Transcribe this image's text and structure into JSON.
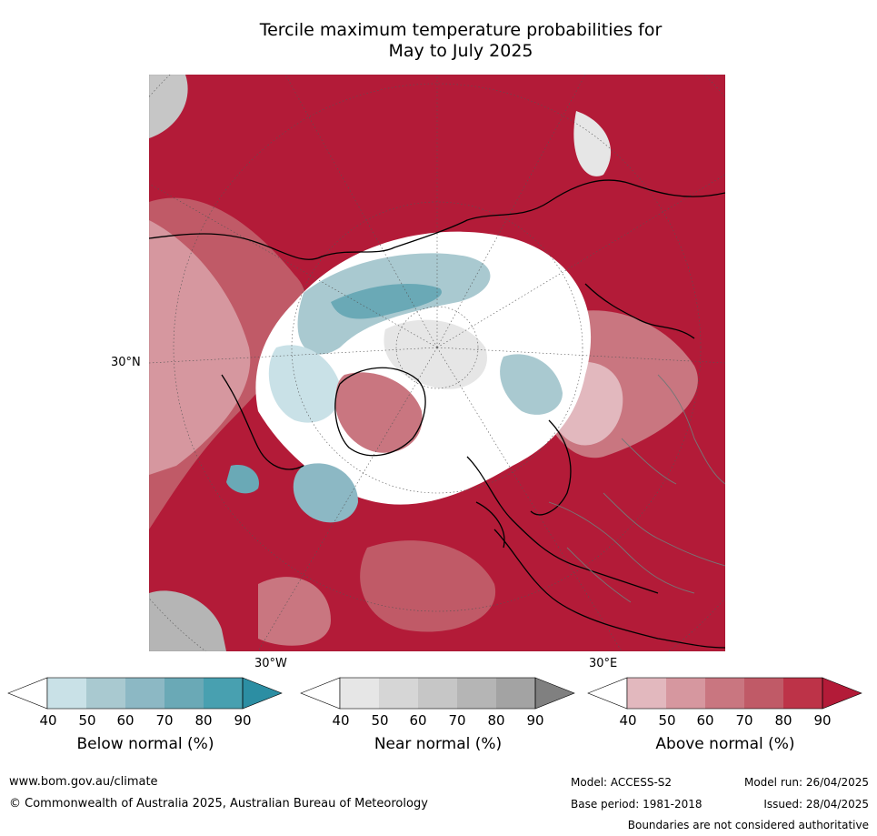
{
  "title": {
    "line1": "Tercile maximum temperature probabilities for",
    "line2": "May to July 2025"
  },
  "map": {
    "lat_label": "30°N",
    "lon_label_west": "30°W",
    "lon_label_east": "30°E"
  },
  "colorbars": [
    {
      "label": "Below normal (%)",
      "ticks": [
        "40",
        "50",
        "60",
        "70",
        "80",
        "90"
      ],
      "colors": [
        "#ffffff",
        "#c9e1e7",
        "#a9c9d0",
        "#8cb8c4",
        "#6aa9b6",
        "#48a0b0",
        "#2c8ea3"
      ]
    },
    {
      "label": "Near normal (%)",
      "ticks": [
        "40",
        "50",
        "60",
        "70",
        "80",
        "90"
      ],
      "colors": [
        "#ffffff",
        "#e6e6e6",
        "#d6d6d6",
        "#c6c6c6",
        "#b5b5b5",
        "#a3a3a3",
        "#808080"
      ]
    },
    {
      "label": "Above normal (%)",
      "ticks": [
        "40",
        "50",
        "60",
        "70",
        "80",
        "90"
      ],
      "colors": [
        "#ffffff",
        "#e2b8be",
        "#d6979f",
        "#c97680",
        "#c05a67",
        "#bd3348",
        "#b31b38"
      ]
    }
  ],
  "footer": {
    "url": "www.bom.gov.au/climate",
    "copyright": "© Commonwealth of Australia 2025, Australian Bureau of Meteorology",
    "model": "Model: ACCESS-S2",
    "model_run": "Model run: 26/04/2025",
    "base_period": "Base period: 1981-2018",
    "issued": "Issued: 28/04/2025",
    "disclaimer": "Boundaries are not considered authoritative"
  }
}
